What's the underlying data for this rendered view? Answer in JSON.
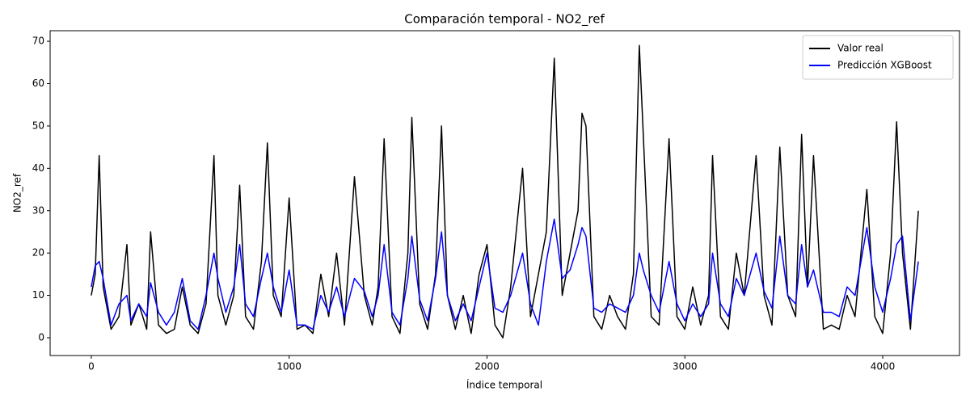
{
  "chart_data": {
    "type": "line",
    "title": "Comparación temporal - NO2_ref",
    "x_label": "Índice temporal",
    "y_label": "NO2_ref",
    "x": [
      0,
      20,
      40,
      60,
      100,
      140,
      180,
      200,
      240,
      280,
      300,
      340,
      380,
      420,
      460,
      500,
      540,
      580,
      620,
      640,
      680,
      720,
      750,
      780,
      820,
      860,
      890,
      920,
      960,
      1000,
      1040,
      1080,
      1120,
      1160,
      1200,
      1240,
      1280,
      1330,
      1380,
      1420,
      1450,
      1480,
      1520,
      1560,
      1600,
      1620,
      1660,
      1700,
      1740,
      1770,
      1800,
      1840,
      1880,
      1920,
      1960,
      2000,
      2040,
      2080,
      2120,
      2180,
      2220,
      2260,
      2300,
      2340,
      2380,
      2420,
      2460,
      2480,
      2500,
      2540,
      2580,
      2620,
      2660,
      2700,
      2740,
      2770,
      2790,
      2830,
      2870,
      2920,
      2960,
      3000,
      3040,
      3080,
      3120,
      3140,
      3180,
      3220,
      3260,
      3300,
      3360,
      3400,
      3440,
      3480,
      3520,
      3560,
      3590,
      3620,
      3650,
      3700,
      3740,
      3780,
      3820,
      3860,
      3920,
      3960,
      4000,
      4040,
      4070,
      4100,
      4140,
      4180
    ],
    "series": [
      {
        "name": "Valor real",
        "color": "#000000",
        "values": [
          10,
          15,
          43,
          12,
          2,
          5,
          22,
          3,
          8,
          2,
          25,
          3,
          1,
          2,
          12,
          3,
          1,
          8,
          43,
          10,
          3,
          10,
          36,
          5,
          2,
          18,
          46,
          10,
          5,
          33,
          2,
          3,
          1,
          15,
          5,
          20,
          3,
          38,
          10,
          3,
          12,
          47,
          5,
          1,
          20,
          52,
          8,
          2,
          15,
          50,
          10,
          2,
          10,
          1,
          15,
          22,
          3,
          0,
          12,
          40,
          5,
          15,
          25,
          66,
          10,
          20,
          30,
          53,
          50,
          5,
          2,
          10,
          5,
          2,
          15,
          69,
          48,
          5,
          3,
          47,
          5,
          2,
          12,
          3,
          10,
          43,
          5,
          2,
          20,
          10,
          43,
          10,
          3,
          45,
          10,
          5,
          48,
          12,
          43,
          2,
          3,
          2,
          10,
          5,
          35,
          5,
          1,
          20,
          51,
          20,
          2,
          30
        ]
      },
      {
        "name": "Predicción XGBoost",
        "color": "#0000ff",
        "values": [
          12,
          17,
          18,
          14,
          3,
          8,
          10,
          4,
          8,
          5,
          13,
          6,
          3,
          6,
          14,
          4,
          2,
          10,
          20,
          14,
          6,
          12,
          22,
          8,
          5,
          14,
          20,
          12,
          6,
          16,
          3,
          3,
          2,
          10,
          6,
          12,
          5,
          14,
          11,
          5,
          10,
          22,
          6,
          3,
          14,
          24,
          9,
          4,
          14,
          25,
          10,
          4,
          8,
          4,
          12,
          20,
          7,
          6,
          10,
          20,
          8,
          3,
          18,
          28,
          14,
          16,
          22,
          26,
          24,
          7,
          6,
          8,
          7,
          6,
          10,
          20,
          16,
          10,
          6,
          18,
          8,
          4,
          8,
          5,
          8,
          20,
          8,
          5,
          14,
          10,
          20,
          11,
          7,
          24,
          10,
          8,
          22,
          12,
          16,
          6,
          6,
          5,
          12,
          10,
          26,
          12,
          6,
          14,
          22,
          24,
          4,
          18
        ]
      }
    ],
    "xlim": [
      -208,
      4388
    ],
    "ylim": [
      -4.2,
      72.5
    ],
    "xticks": [
      0,
      1000,
      2000,
      3000,
      4000
    ],
    "yticks": [
      0,
      10,
      20,
      30,
      40,
      50,
      60,
      70
    ],
    "grid": false,
    "legend": "upper right"
  }
}
